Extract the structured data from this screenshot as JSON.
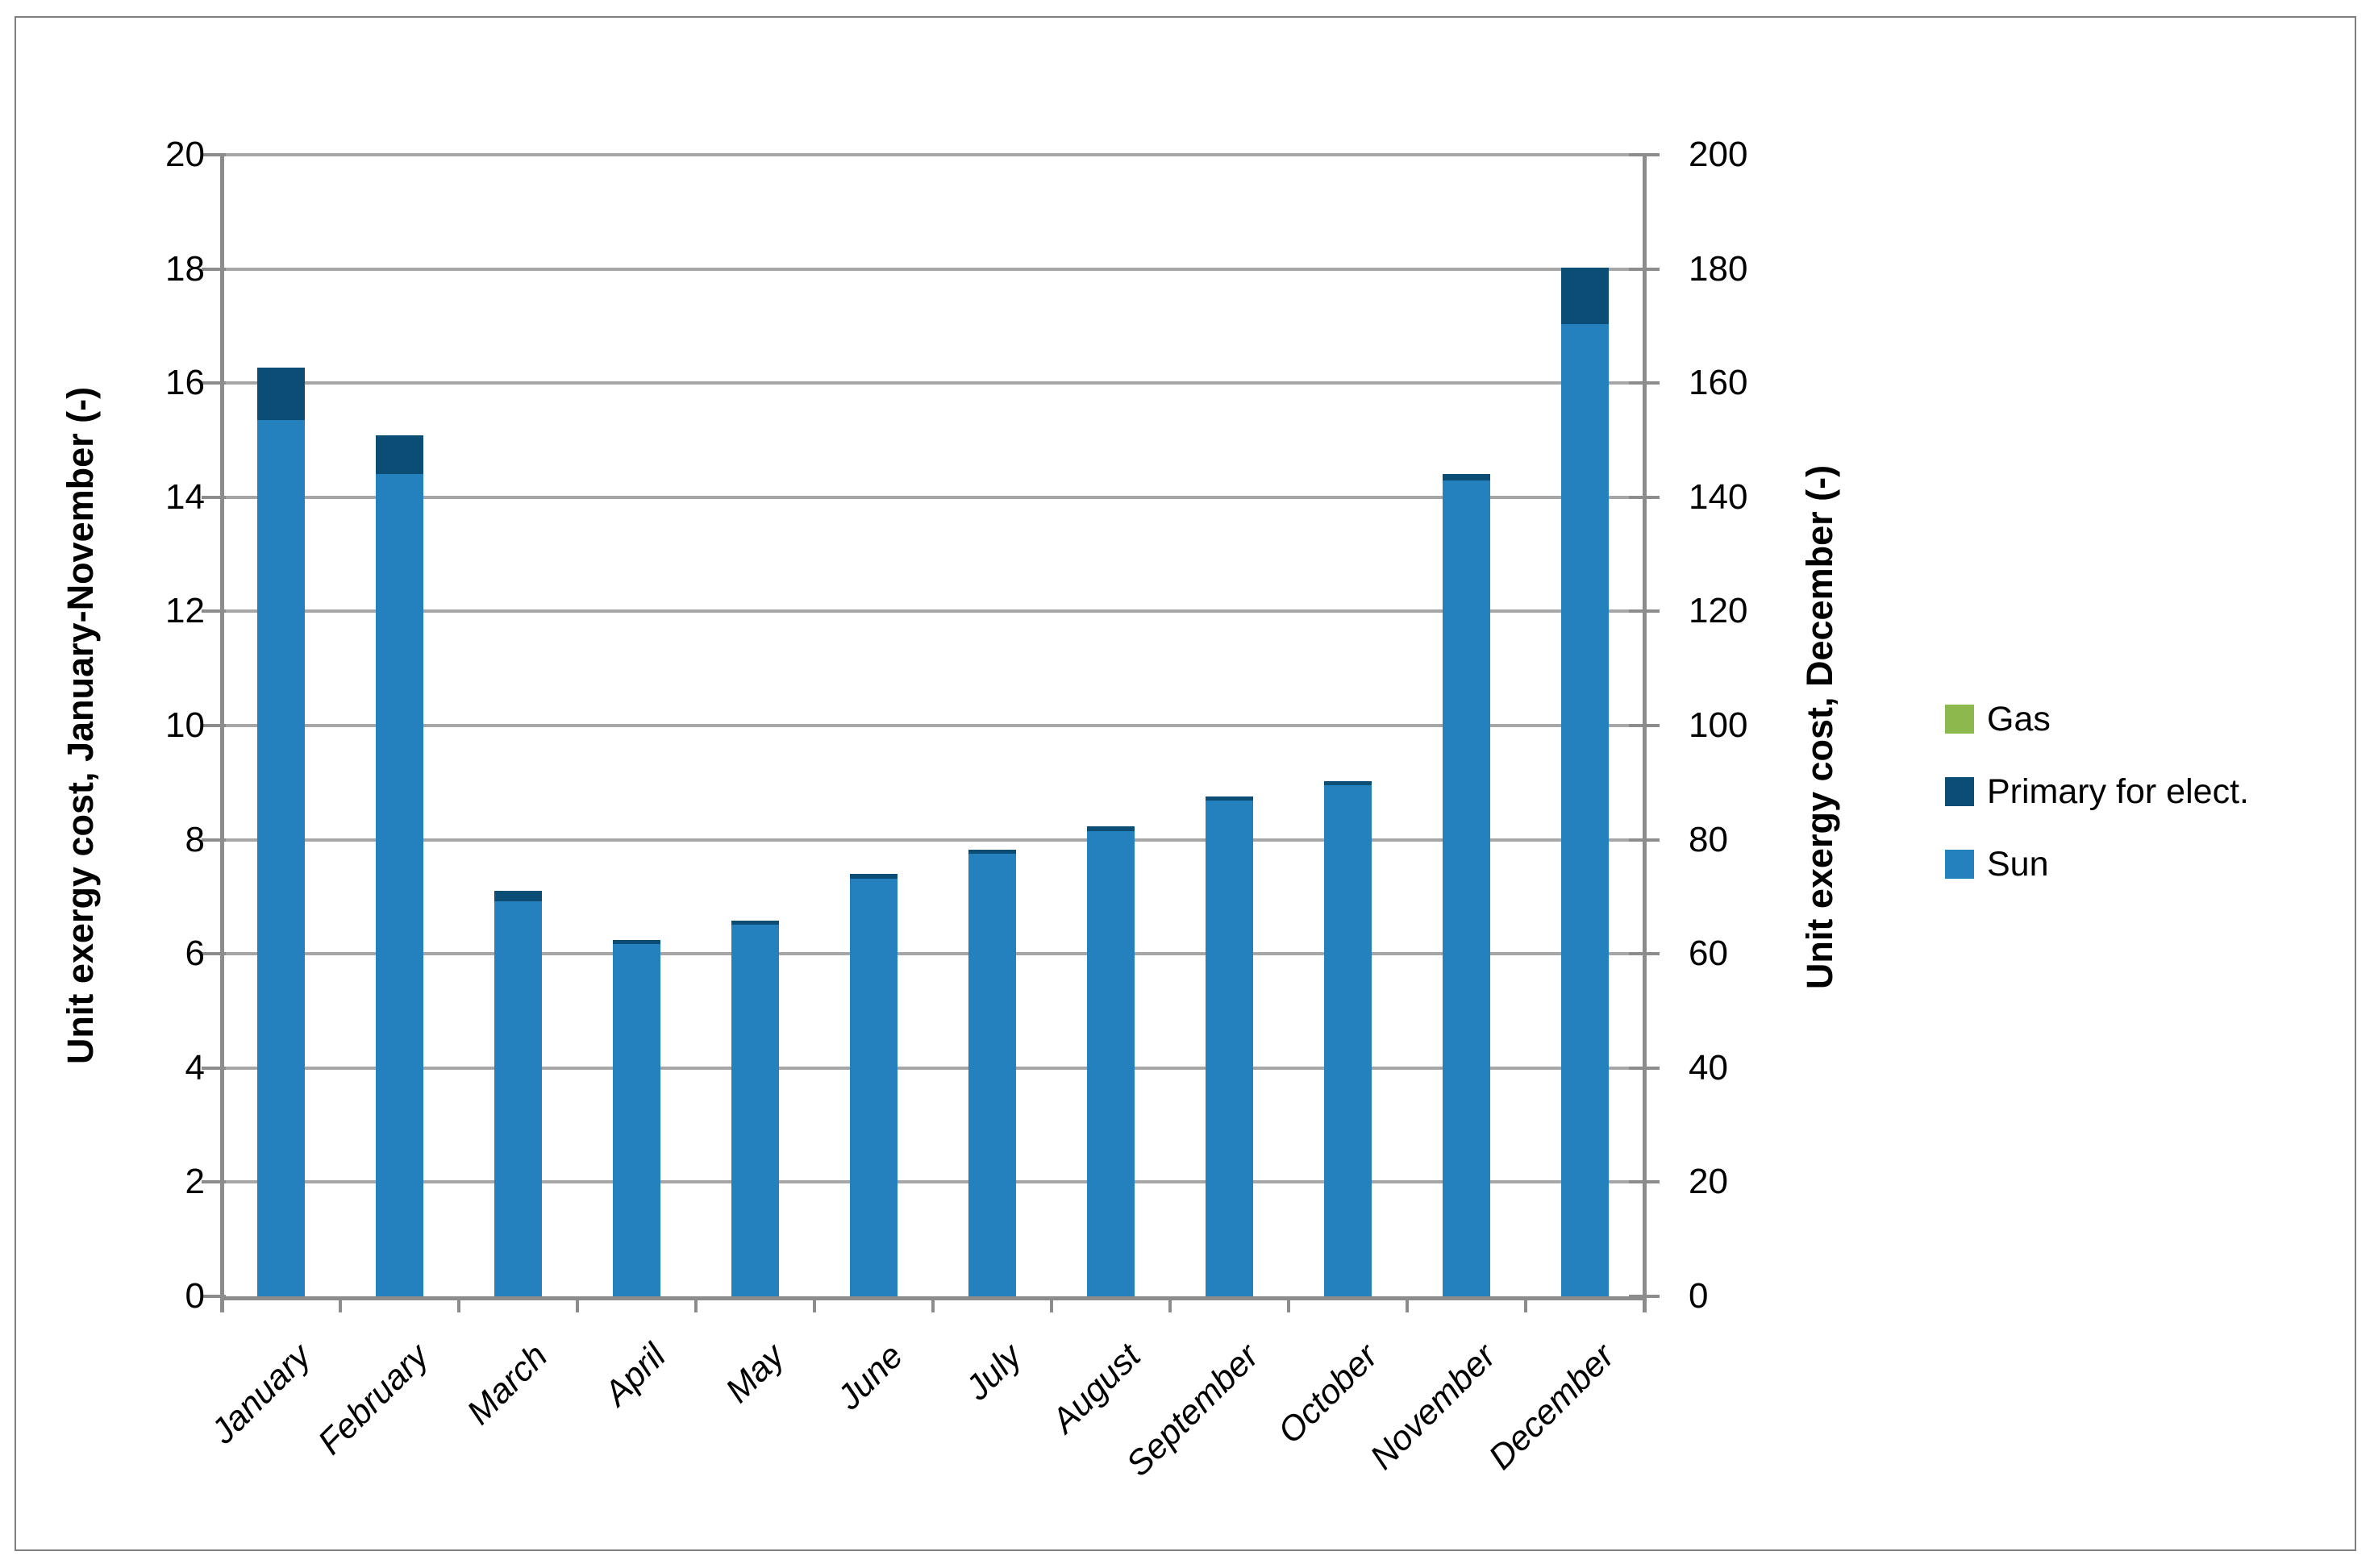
{
  "figure": {
    "background": "#FFFFFF",
    "border_color": "#7F7F7F",
    "gridline_color": "#A6A6A6",
    "axis_line_color": "#8C8C8C"
  },
  "chart_data": {
    "type": "bar",
    "stacked": true,
    "grid": true,
    "legend_position": "right",
    "categories": [
      "January",
      "February",
      "March",
      "April",
      "May",
      "June",
      "July",
      "August",
      "September",
      "October",
      "November",
      "December"
    ],
    "series": [
      {
        "name": "Sun",
        "color": "#2581BE",
        "values": [
          15.35,
          14.4,
          6.92,
          6.17,
          6.51,
          7.32,
          7.76,
          8.15,
          8.69,
          8.96,
          14.3,
          170.4
        ]
      },
      {
        "name": "Primary for elect.",
        "color": "#0C4D76",
        "values": [
          0.92,
          0.68,
          0.18,
          0.07,
          0.07,
          0.08,
          0.07,
          0.08,
          0.07,
          0.07,
          0.1,
          9.8
        ]
      },
      {
        "name": "Gas",
        "color": "#8CB94D",
        "values": [
          0,
          0,
          0,
          0,
          0,
          0,
          0,
          0,
          0,
          0,
          0,
          0
        ]
      }
    ],
    "left_axis": {
      "title": "Unit exergy cost, January-November (-)",
      "min": 0,
      "max": 20,
      "step": 2
    },
    "right_axis": {
      "title": "Unit exergy cost, December (-)",
      "min": 0,
      "max": 200,
      "step": 20
    },
    "december_uses_right_axis": true,
    "legend_order_top_to_bottom": [
      "Gas",
      "Primary for elect.",
      "Sun"
    ]
  }
}
